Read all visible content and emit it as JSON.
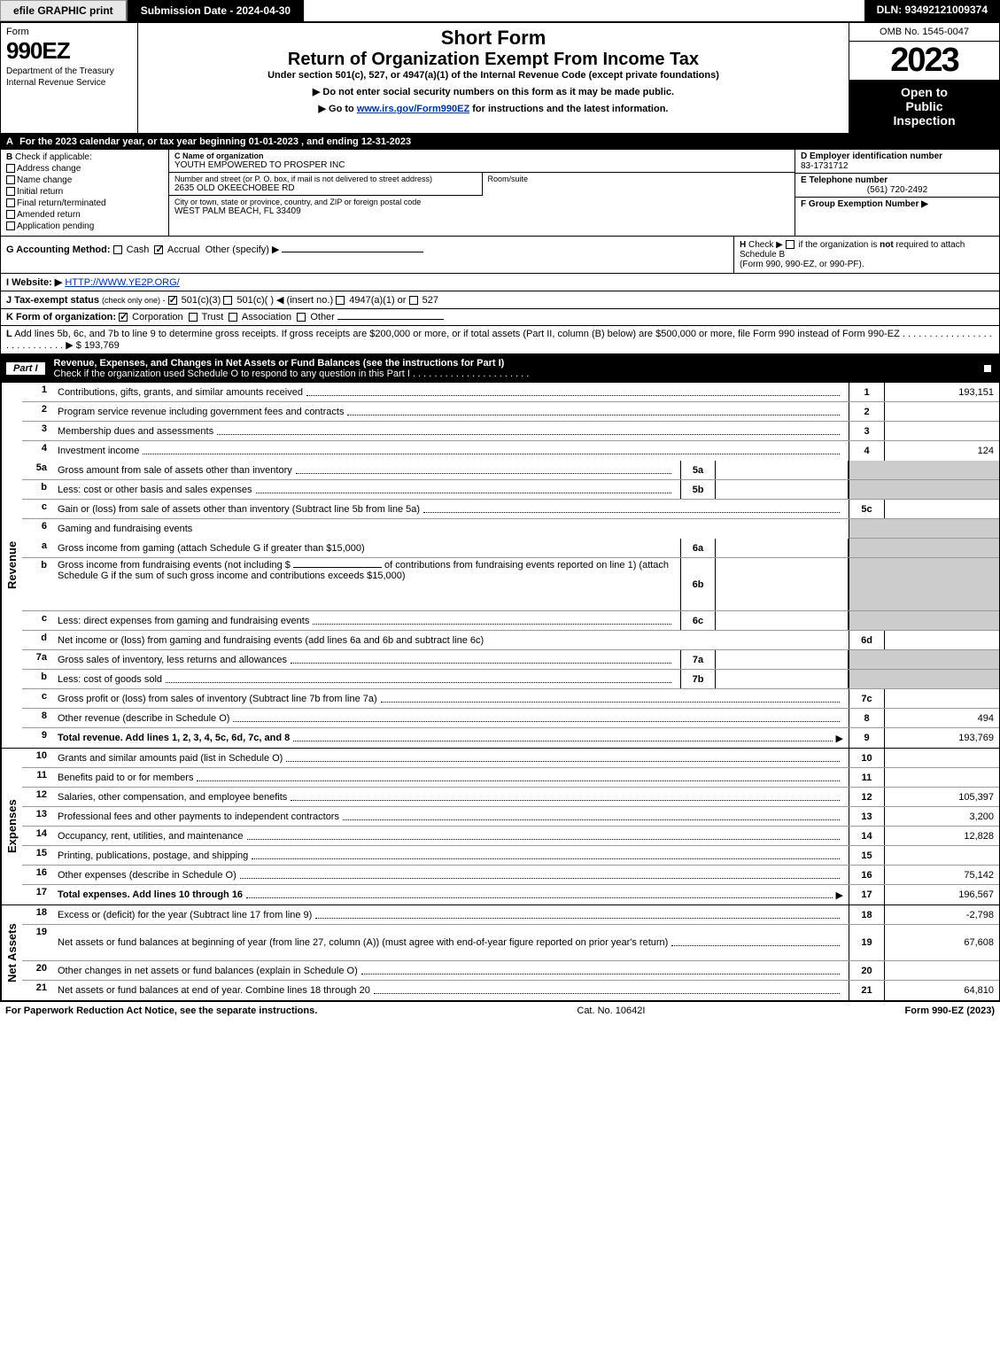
{
  "topbar": {
    "efile_label": "efile GRAPHIC print",
    "submission_label": "Submission Date - 2024-04-30",
    "dln_label": "DLN: 93492121009374"
  },
  "header": {
    "form_label": "Form",
    "form_number": "990EZ",
    "dept1": "Department of the Treasury",
    "dept2": "Internal Revenue Service",
    "title1": "Short Form",
    "title2": "Return of Organization Exempt From Income Tax",
    "subtitle": "Under section 501(c), 527, or 4947(a)(1) of the Internal Revenue Code (except private foundations)",
    "instr1": "▶ Do not enter social security numbers on this form as it may be made public.",
    "instr2_pre": "▶ Go to ",
    "instr2_link": "www.irs.gov/Form990EZ",
    "instr2_post": " for instructions and the latest information.",
    "omb": "OMB No. 1545-0047",
    "year": "2023",
    "open1": "Open to",
    "open2": "Public",
    "open3": "Inspection"
  },
  "line_a": {
    "label": "A",
    "text": "For the 2023 calendar year, or tax year beginning 01-01-2023 , and ending 12-31-2023"
  },
  "section_b": {
    "label": "B",
    "title": "Check if applicable:",
    "opts": [
      "Address change",
      "Name change",
      "Initial return",
      "Final return/terminated",
      "Amended return",
      "Application pending"
    ]
  },
  "section_c": {
    "name_label": "C Name of organization",
    "name_value": "YOUTH EMPOWERED TO PROSPER INC",
    "street_label": "Number and street (or P. O. box, if mail is not delivered to street address)",
    "street_value": "2635 OLD OKEECHOBEE RD",
    "suite_label": "Room/suite",
    "city_label": "City or town, state or province, country, and ZIP or foreign postal code",
    "city_value": "WEST PALM BEACH, FL  33409"
  },
  "section_d": {
    "ein_label": "D Employer identification number",
    "ein_value": "83-1731712",
    "tel_label": "E Telephone number",
    "tel_value": "(561) 720-2492",
    "group_label": "F Group Exemption Number  ▶"
  },
  "line_g": {
    "label": "G Accounting Method:",
    "cash": "Cash",
    "accrual": "Accrual",
    "other": "Other (specify) ▶"
  },
  "line_h": {
    "label": "H",
    "text1": "Check ▶",
    "text2": "if the organization is ",
    "text3": "not",
    "text4": " required to attach Schedule B",
    "text5": "(Form 990, 990-EZ, or 990-PF)."
  },
  "line_i": {
    "label": "I Website: ▶",
    "value": "HTTP://WWW.YE2P.ORG/"
  },
  "line_j": {
    "label": "J Tax-exempt status",
    "sub": "(check only one) -",
    "opt1": "501(c)(3)",
    "opt2": "501(c)(  ) ◀ (insert no.)",
    "opt3": "4947(a)(1) or",
    "opt4": "527"
  },
  "line_k": {
    "label": "K Form of organization:",
    "opts": [
      "Corporation",
      "Trust",
      "Association",
      "Other"
    ]
  },
  "line_l": {
    "label": "L",
    "text": "Add lines 5b, 6c, and 7b to line 9 to determine gross receipts. If gross receipts are $200,000 or more, or if total assets (Part II, column (B) below) are $500,000 or more, file Form 990 instead of Form 990-EZ",
    "amount": "$ 193,769"
  },
  "part1": {
    "label": "Part I",
    "title": "Revenue, Expenses, and Changes in Net Assets or Fund Balances (see the instructions for Part I)",
    "sub": "Check if the organization used Schedule O to respond to any question in this Part I"
  },
  "revenue": {
    "side": "Revenue",
    "rows": [
      {
        "n": "1",
        "d": "Contributions, gifts, grants, and similar amounts received",
        "rn": "1",
        "v": "193,151"
      },
      {
        "n": "2",
        "d": "Program service revenue including government fees and contracts",
        "rn": "2",
        "v": ""
      },
      {
        "n": "3",
        "d": "Membership dues and assessments",
        "rn": "3",
        "v": ""
      },
      {
        "n": "4",
        "d": "Investment income",
        "rn": "4",
        "v": "124"
      }
    ],
    "r5a": {
      "n": "5a",
      "d": "Gross amount from sale of assets other than inventory",
      "sn": "5a"
    },
    "r5b": {
      "n": "b",
      "d": "Less: cost or other basis and sales expenses",
      "sn": "5b"
    },
    "r5c": {
      "n": "c",
      "d": "Gain or (loss) from sale of assets other than inventory (Subtract line 5b from line 5a)",
      "rn": "5c",
      "v": ""
    },
    "r6": {
      "n": "6",
      "d": "Gaming and fundraising events"
    },
    "r6a": {
      "n": "a",
      "d": "Gross income from gaming (attach Schedule G if greater than $15,000)",
      "sn": "6a"
    },
    "r6b": {
      "n": "b",
      "d1": "Gross income from fundraising events (not including $",
      "d2": "of contributions from fundraising events reported on line 1) (attach Schedule G if the sum of such gross income and contributions exceeds $15,000)",
      "sn": "6b"
    },
    "r6c": {
      "n": "c",
      "d": "Less: direct expenses from gaming and fundraising events",
      "sn": "6c"
    },
    "r6d": {
      "n": "d",
      "d": "Net income or (loss) from gaming and fundraising events (add lines 6a and 6b and subtract line 6c)",
      "rn": "6d",
      "v": ""
    },
    "r7a": {
      "n": "7a",
      "d": "Gross sales of inventory, less returns and allowances",
      "sn": "7a"
    },
    "r7b": {
      "n": "b",
      "d": "Less: cost of goods sold",
      "sn": "7b"
    },
    "r7c": {
      "n": "c",
      "d": "Gross profit or (loss) from sales of inventory (Subtract line 7b from line 7a)",
      "rn": "7c",
      "v": ""
    },
    "r8": {
      "n": "8",
      "d": "Other revenue (describe in Schedule O)",
      "rn": "8",
      "v": "494"
    },
    "r9": {
      "n": "9",
      "d": "Total revenue. Add lines 1, 2, 3, 4, 5c, 6d, 7c, and 8",
      "rn": "9",
      "v": "193,769"
    }
  },
  "expenses": {
    "side": "Expenses",
    "rows": [
      {
        "n": "10",
        "d": "Grants and similar amounts paid (list in Schedule O)",
        "rn": "10",
        "v": ""
      },
      {
        "n": "11",
        "d": "Benefits paid to or for members",
        "rn": "11",
        "v": ""
      },
      {
        "n": "12",
        "d": "Salaries, other compensation, and employee benefits",
        "rn": "12",
        "v": "105,397"
      },
      {
        "n": "13",
        "d": "Professional fees and other payments to independent contractors",
        "rn": "13",
        "v": "3,200"
      },
      {
        "n": "14",
        "d": "Occupancy, rent, utilities, and maintenance",
        "rn": "14",
        "v": "12,828"
      },
      {
        "n": "15",
        "d": "Printing, publications, postage, and shipping",
        "rn": "15",
        "v": ""
      },
      {
        "n": "16",
        "d": "Other expenses (describe in Schedule O)",
        "rn": "16",
        "v": "75,142"
      },
      {
        "n": "17",
        "d": "Total expenses. Add lines 10 through 16",
        "rn": "17",
        "v": "196,567"
      }
    ]
  },
  "netassets": {
    "side": "Net Assets",
    "rows": [
      {
        "n": "18",
        "d": "Excess or (deficit) for the year (Subtract line 17 from line 9)",
        "rn": "18",
        "v": "-2,798"
      },
      {
        "n": "19",
        "d": "Net assets or fund balances at beginning of year (from line 27, column (A)) (must agree with end-of-year figure reported on prior year's return)",
        "rn": "19",
        "v": "67,608"
      },
      {
        "n": "20",
        "d": "Other changes in net assets or fund balances (explain in Schedule O)",
        "rn": "20",
        "v": ""
      },
      {
        "n": "21",
        "d": "Net assets or fund balances at end of year. Combine lines 18 through 20",
        "rn": "21",
        "v": "64,810"
      }
    ]
  },
  "footer": {
    "left": "For Paperwork Reduction Act Notice, see the separate instructions.",
    "mid": "Cat. No. 10642I",
    "right": "Form 990-EZ (2023)"
  }
}
